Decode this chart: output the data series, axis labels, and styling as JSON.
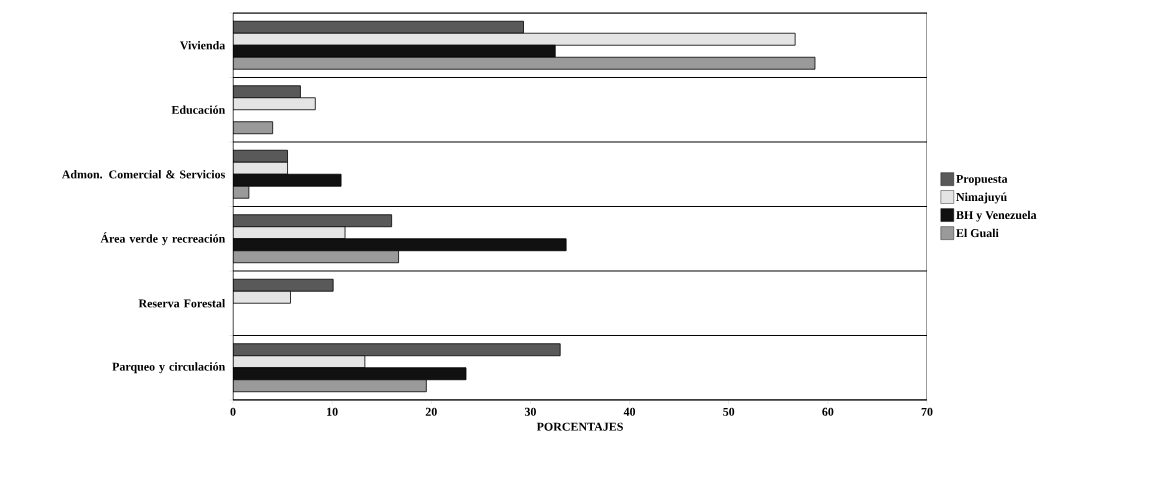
{
  "chart_data": {
    "type": "bar",
    "orientation": "horizontal",
    "xlabel": "PORCENTAJES",
    "categories": [
      "Vivienda",
      "Educación",
      "Admon. Comercial & Servicios",
      "Área verde y recreación",
      "Reserva Forestal",
      "Parqueo y circulación"
    ],
    "series": [
      {
        "name": "Propuesta",
        "color": "#595959",
        "values": [
          29.3,
          6.8,
          5.5,
          16.0,
          10.1,
          33.0
        ]
      },
      {
        "name": "Nimajuyú",
        "color": "#e4e4e4",
        "values": [
          56.7,
          8.3,
          5.5,
          11.3,
          5.8,
          13.3
        ]
      },
      {
        "name": "BH y Venezuela",
        "color": "#111111",
        "values": [
          32.5,
          null,
          10.9,
          33.6,
          null,
          23.5
        ]
      },
      {
        "name": "El Guali",
        "color": "#9a9a9a",
        "values": [
          58.7,
          4.0,
          1.6,
          16.7,
          null,
          19.5
        ]
      }
    ],
    "xlim": [
      0,
      70
    ],
    "xticks": [
      0,
      10,
      20,
      30,
      40,
      50,
      60,
      70
    ],
    "grid": "y",
    "legend": "right"
  }
}
